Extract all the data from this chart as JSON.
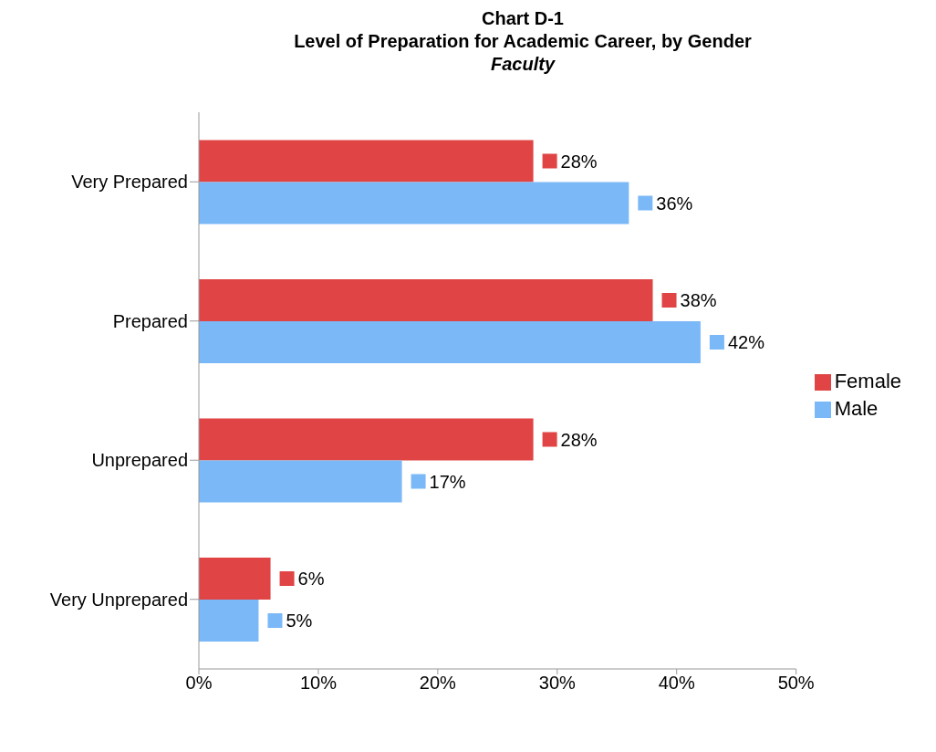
{
  "chart_data": {
    "type": "bar",
    "orientation": "horizontal",
    "title": "Chart D-1\nLevel of Preparation for Academic Career, by Gender",
    "subtitle": "Faculty",
    "categories": [
      "Very Prepared",
      "Prepared",
      "Unprepared",
      "Very Unprepared"
    ],
    "series": [
      {
        "name": "Female",
        "color": "#e04444",
        "values": [
          28,
          38,
          28,
          6
        ],
        "value_labels": [
          "28%",
          "38%",
          "28%",
          "6%"
        ]
      },
      {
        "name": "Male",
        "color": "#7ab8f7",
        "values": [
          36,
          42,
          17,
          5
        ],
        "value_labels": [
          "36%",
          "42%",
          "17%",
          "5%"
        ]
      }
    ],
    "xlim": [
      0,
      50
    ],
    "xticks": [
      {
        "value": 0,
        "label": "0%"
      },
      {
        "value": 10,
        "label": "10%"
      },
      {
        "value": 20,
        "label": "20%"
      },
      {
        "value": 30,
        "label": "30%"
      },
      {
        "value": 40,
        "label": "40%"
      },
      {
        "value": 50,
        "label": "50%"
      }
    ],
    "grid": false,
    "legend": "right"
  }
}
